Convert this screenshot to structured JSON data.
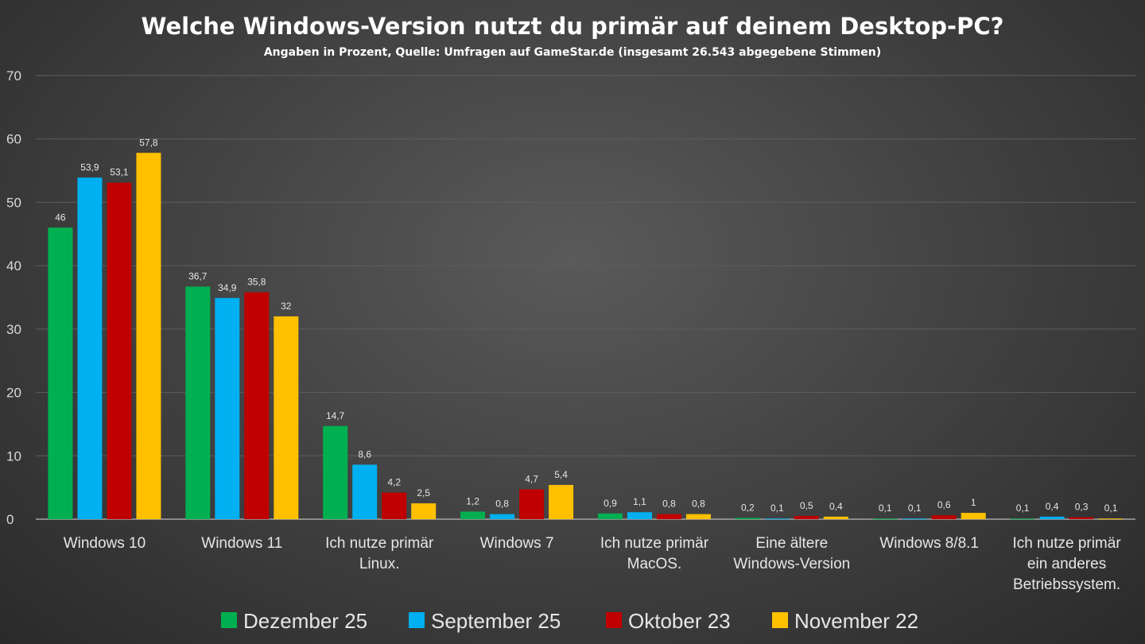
{
  "chart_data": {
    "type": "bar",
    "title": "Welche Windows-Version nutzt du primär auf deinem Desktop-PC?",
    "subtitle": "Angaben in Prozent, Quelle: Umfragen auf GameStar.de (insgesamt 26.543 abgegebene Stimmen)",
    "xlabel": "",
    "ylabel": "",
    "ylim": [
      0,
      70
    ],
    "yticks": [
      0,
      10,
      20,
      30,
      40,
      50,
      60,
      70
    ],
    "grid": true,
    "legend_position": "bottom",
    "categories": [
      [
        "Windows 10"
      ],
      [
        "Windows 11"
      ],
      [
        "Ich nutze primär",
        "Linux."
      ],
      [
        "Windows 7"
      ],
      [
        "Ich nutze primär",
        "MacOS."
      ],
      [
        "Eine ältere",
        "Windows-Version"
      ],
      [
        "Windows 8/8.1"
      ],
      [
        "Ich nutze primär",
        "ein anderes",
        "Betriebssystem."
      ]
    ],
    "series": [
      {
        "name": "Dezember 25",
        "color": "#00b050",
        "values": [
          46,
          36.7,
          14.7,
          1.2,
          0.9,
          0.2,
          0.1,
          0.1
        ]
      },
      {
        "name": "September 25",
        "color": "#00b0f0",
        "values": [
          53.9,
          34.9,
          8.6,
          0.8,
          1.1,
          0.1,
          0.1,
          0.4
        ]
      },
      {
        "name": "Oktober 23",
        "color": "#c00000",
        "values": [
          53.1,
          35.8,
          4.2,
          4.7,
          0.8,
          0.5,
          0.6,
          0.3
        ]
      },
      {
        "name": "November 22",
        "color": "#ffc000",
        "values": [
          57.8,
          32,
          2.5,
          5.4,
          0.8,
          0.4,
          1,
          0.1
        ]
      }
    ]
  }
}
